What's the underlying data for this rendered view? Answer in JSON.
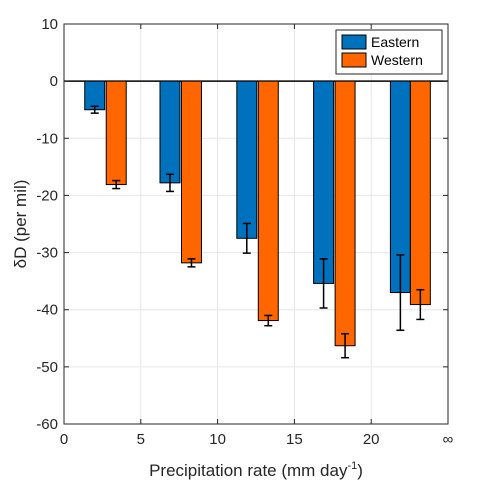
{
  "chart_data": {
    "type": "bar",
    "title": "",
    "xlabel": "Precipitation rate (mm day",
    "xlabel_sup": "-1",
    "xlabel_close": ")",
    "ylabel": "δD (per mil)",
    "xlim": [
      0,
      25
    ],
    "ylim": [
      -60,
      10
    ],
    "x_ticks": [
      0,
      5,
      10,
      15,
      20,
      25
    ],
    "x_tick_labels": [
      "0",
      "5",
      "10",
      "15",
      "20",
      "∞"
    ],
    "y_ticks": [
      10,
      0,
      -10,
      -20,
      -30,
      -40,
      -50,
      -60
    ],
    "y_tick_labels": [
      "10",
      "0",
      "-10",
      "-20",
      "-30",
      "-40",
      "-50",
      "-60"
    ],
    "grid": true,
    "legend_position": "top-right",
    "bar_width": 1.3,
    "series": [
      {
        "name": "Eastern",
        "color": "#0072BD",
        "x": [
          2.0,
          6.9,
          11.9,
          16.9,
          21.9
        ],
        "values": [
          -5.0,
          -17.8,
          -27.5,
          -35.4,
          -37.0
        ],
        "errors": [
          0.6,
          1.5,
          2.6,
          4.3,
          6.6
        ]
      },
      {
        "name": "Western",
        "color": "#FF6600",
        "x": [
          3.4,
          8.3,
          13.3,
          18.3,
          23.2
        ],
        "values": [
          -18.1,
          -31.8,
          -41.9,
          -46.3,
          -39.1
        ],
        "errors": [
          0.7,
          0.7,
          0.9,
          2.1,
          2.6
        ]
      }
    ]
  }
}
